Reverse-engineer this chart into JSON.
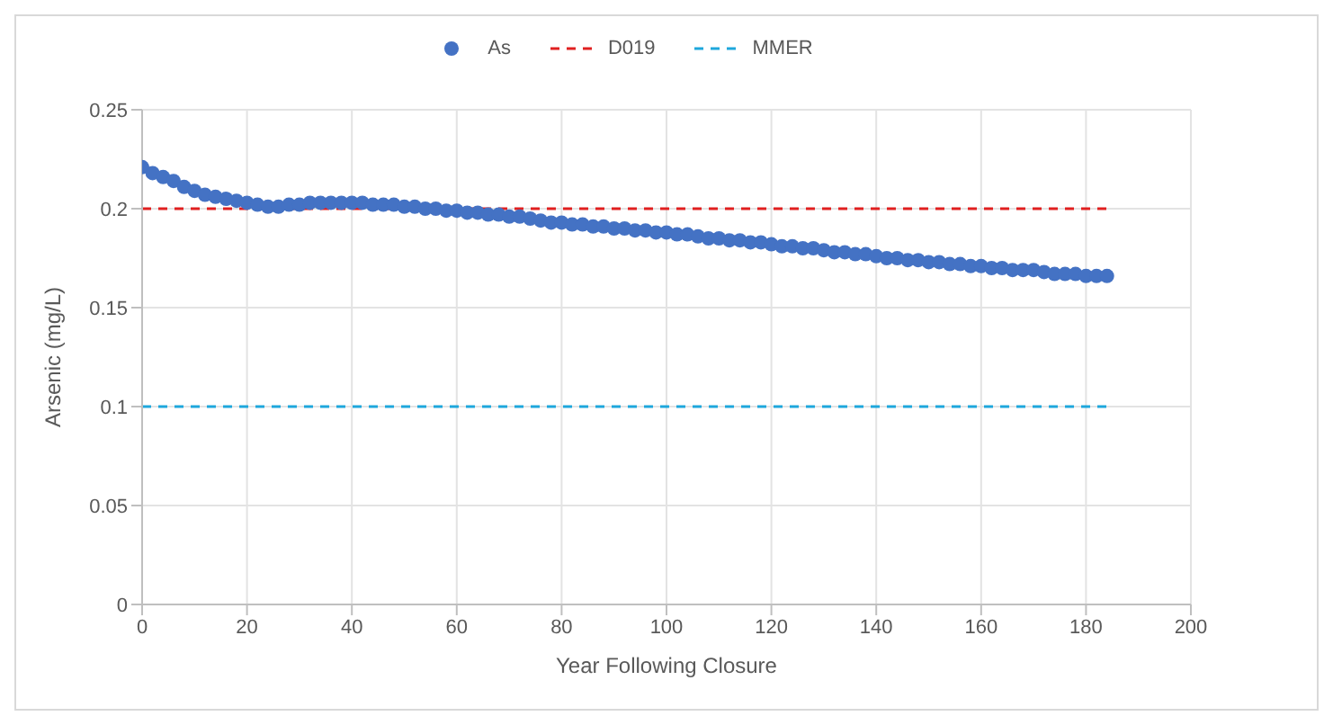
{
  "chart_data": {
    "type": "scatter",
    "xlabel": "Year Following Closure",
    "ylabel": "Arsenic (mg/L)",
    "xlim": [
      0,
      200
    ],
    "xticks": [
      0,
      20,
      40,
      60,
      80,
      100,
      120,
      140,
      160,
      180,
      200
    ],
    "ylim": [
      0,
      0.25
    ],
    "yticks": [
      0,
      0.05,
      0.1,
      0.15,
      0.2,
      0.25
    ],
    "grid": true,
    "legend": "top",
    "series": [
      {
        "name": "As",
        "marker": "circle",
        "color": "#4472c4",
        "x": [
          0,
          2,
          4,
          6,
          8,
          10,
          12,
          14,
          16,
          18,
          20,
          22,
          24,
          26,
          28,
          30,
          32,
          34,
          36,
          38,
          40,
          42,
          44,
          46,
          48,
          50,
          52,
          54,
          56,
          58,
          60,
          62,
          64,
          66,
          68,
          70,
          72,
          74,
          76,
          78,
          80,
          82,
          84,
          86,
          88,
          90,
          92,
          94,
          96,
          98,
          100,
          102,
          104,
          106,
          108,
          110,
          112,
          114,
          116,
          118,
          120,
          122,
          124,
          126,
          128,
          130,
          132,
          134,
          136,
          138,
          140,
          142,
          144,
          146,
          148,
          150,
          152,
          154,
          156,
          158,
          160,
          162,
          164,
          166,
          168,
          170,
          172,
          174,
          176,
          178,
          180,
          182,
          184
        ],
        "values": [
          0.221,
          0.218,
          0.216,
          0.214,
          0.211,
          0.209,
          0.207,
          0.206,
          0.205,
          0.204,
          0.203,
          0.202,
          0.201,
          0.201,
          0.202,
          0.202,
          0.203,
          0.203,
          0.203,
          0.203,
          0.203,
          0.203,
          0.202,
          0.202,
          0.202,
          0.201,
          0.201,
          0.2,
          0.2,
          0.199,
          0.199,
          0.198,
          0.198,
          0.197,
          0.197,
          0.196,
          0.196,
          0.195,
          0.194,
          0.193,
          0.193,
          0.192,
          0.192,
          0.191,
          0.191,
          0.19,
          0.19,
          0.189,
          0.189,
          0.188,
          0.188,
          0.187,
          0.187,
          0.186,
          0.185,
          0.185,
          0.184,
          0.184,
          0.183,
          0.183,
          0.182,
          0.181,
          0.181,
          0.18,
          0.18,
          0.179,
          0.178,
          0.178,
          0.177,
          0.177,
          0.176,
          0.175,
          0.175,
          0.174,
          0.174,
          0.173,
          0.173,
          0.172,
          0.172,
          0.171,
          0.171,
          0.17,
          0.17,
          0.169,
          0.169,
          0.169,
          0.168,
          0.167,
          0.167,
          0.167,
          0.166,
          0.166,
          0.166
        ]
      },
      {
        "name": "D019",
        "type": "line",
        "marker": "none",
        "line_style": "dashed",
        "color": "#e02020",
        "x": [
          0,
          184
        ],
        "values": [
          0.2,
          0.2
        ]
      },
      {
        "name": "MMER",
        "type": "line",
        "marker": "none",
        "line_style": "dashed",
        "color": "#1ea7dc",
        "x": [
          0,
          184
        ],
        "values": [
          0.1,
          0.1
        ]
      }
    ]
  }
}
